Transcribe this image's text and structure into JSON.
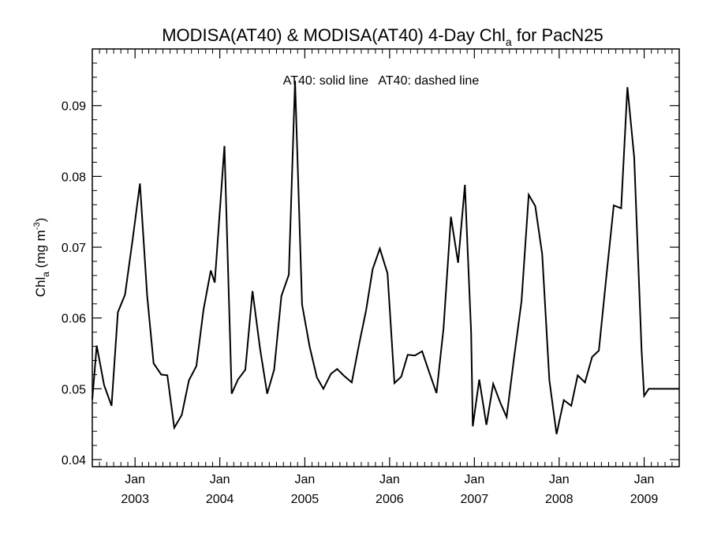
{
  "chart_data": {
    "type": "line",
    "title": {
      "main": "MODISA(AT40) & MODISA(AT40) 4-Day Chl",
      "sub": "a",
      "suffix": " for PacN25"
    },
    "annotation": "AT40: solid line   AT40: dashed line",
    "ylabel": {
      "main": "Chl",
      "sub": "a",
      "unit_prefix": " (mg m",
      "unit_sup": "-3",
      "unit_suffix": ")"
    },
    "xlim": [
      "2002-07-01",
      "2009-06-01"
    ],
    "ylim": [
      0.039,
      0.098
    ],
    "yticks": [
      0.04,
      0.05,
      0.06,
      0.07,
      0.08,
      0.09
    ],
    "ytick_labels": [
      "0.04",
      "0.05",
      "0.06",
      "0.07",
      "0.08",
      "0.09"
    ],
    "xticks": [
      {
        "date": "2003-01-01",
        "month": "Jan",
        "year": "2003"
      },
      {
        "date": "2004-01-01",
        "month": "Jan",
        "year": "2004"
      },
      {
        "date": "2005-01-01",
        "month": "Jan",
        "year": "2005"
      },
      {
        "date": "2006-01-01",
        "month": "Jan",
        "year": "2006"
      },
      {
        "date": "2007-01-01",
        "month": "Jan",
        "year": "2007"
      },
      {
        "date": "2008-01-01",
        "month": "Jan",
        "year": "2008"
      },
      {
        "date": "2009-01-01",
        "month": "Jan",
        "year": "2009"
      }
    ],
    "grid": false,
    "series": [
      {
        "style": "solid",
        "color": "#000000",
        "x": [
          "2002-07-01",
          "2002-07-20",
          "2002-08-21",
          "2002-09-22",
          "2002-10-19",
          "2002-11-19",
          "2002-12-21",
          "2003-01-22",
          "2003-02-22",
          "2003-03-22",
          "2003-04-24",
          "2003-05-20",
          "2003-06-19",
          "2003-07-21",
          "2003-08-21",
          "2003-09-22",
          "2003-10-23",
          "2003-11-23",
          "2003-12-10",
          "2003-12-21",
          "2004-01-21",
          "2004-02-21",
          "2004-03-19",
          "2004-04-20",
          "2004-05-21",
          "2004-06-22",
          "2004-07-23",
          "2004-08-22",
          "2004-09-22",
          "2004-10-24",
          "2004-11-20",
          "2004-12-20",
          "2005-01-22",
          "2005-02-22",
          "2005-03-22",
          "2005-04-23",
          "2005-05-20",
          "2005-06-20",
          "2005-07-22",
          "2005-08-22",
          "2005-09-22",
          "2005-10-20",
          "2005-11-20",
          "2005-12-23",
          "2006-01-22",
          "2006-02-20",
          "2006-03-20",
          "2006-04-20",
          "2006-05-21",
          "2006-06-20",
          "2006-07-22",
          "2006-08-21",
          "2006-09-22",
          "2006-10-23",
          "2006-11-21",
          "2006-12-18",
          "2006-12-25",
          "2007-01-22",
          "2007-02-22",
          "2007-03-23",
          "2007-04-23",
          "2007-05-20",
          "2007-06-20",
          "2007-07-23",
          "2007-08-23",
          "2007-09-20",
          "2007-10-20",
          "2007-11-20",
          "2007-12-21",
          "2008-01-21",
          "2008-02-22",
          "2008-03-21",
          "2008-04-21",
          "2008-05-22",
          "2008-06-20",
          "2008-07-21",
          "2008-08-23",
          "2008-09-24",
          "2008-10-21",
          "2008-11-19",
          "2008-12-21",
          "2009-01-01",
          "2009-01-21",
          "2009-02-21",
          "2009-03-21",
          "2009-04-22",
          "2009-05-21",
          "2009-06-01"
        ],
        "y": [
          0.0485,
          0.0561,
          0.0505,
          0.0476,
          0.0608,
          0.0633,
          0.0709,
          0.079,
          0.0632,
          0.0536,
          0.052,
          0.0519,
          0.0445,
          0.0463,
          0.0512,
          0.0532,
          0.0612,
          0.0667,
          0.065,
          0.07,
          0.0843,
          0.0493,
          0.0513,
          0.0527,
          0.0638,
          0.0557,
          0.0493,
          0.0527,
          0.0631,
          0.0661,
          0.0935,
          0.0619,
          0.0559,
          0.0516,
          0.05,
          0.0521,
          0.0528,
          0.0518,
          0.0509,
          0.0562,
          0.0611,
          0.0669,
          0.0698,
          0.0663,
          0.0508,
          0.0517,
          0.0548,
          0.0547,
          0.0553,
          0.0524,
          0.0494,
          0.0585,
          0.0743,
          0.0678,
          0.0788,
          0.058,
          0.0447,
          0.0513,
          0.0449,
          0.0507,
          0.048,
          0.046,
          0.0542,
          0.0624,
          0.0774,
          0.0758,
          0.069,
          0.0512,
          0.0436,
          0.0484,
          0.0476,
          0.0519,
          0.0509,
          0.0545,
          0.0554,
          0.0655,
          0.0759,
          0.0755,
          0.0926,
          0.0827,
          0.0554,
          0.049,
          0.05,
          0.05,
          0.05,
          0.05,
          0.05,
          0.05
        ]
      }
    ]
  }
}
